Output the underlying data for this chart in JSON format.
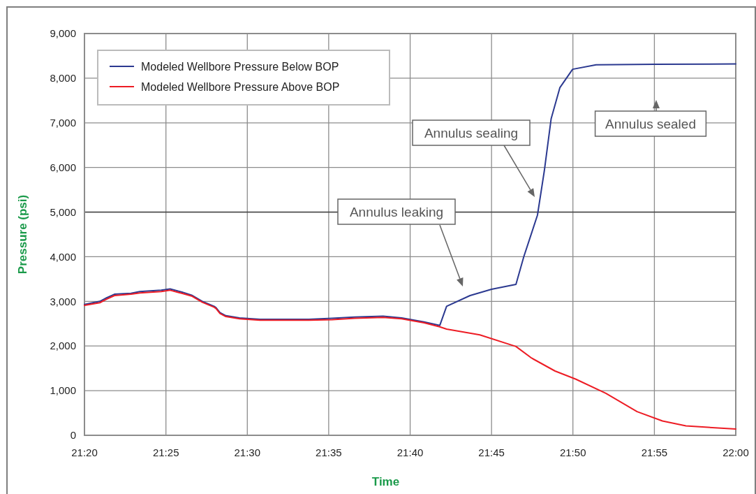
{
  "chart_data": {
    "type": "line",
    "xlabel": "Time",
    "ylabel": "Pressure (psi)",
    "xlim": [
      21.3333,
      22
    ],
    "ylim": [
      0,
      9000
    ],
    "xticks": [
      {
        "value": 21.3333,
        "label": "21:20"
      },
      {
        "value": 21.4167,
        "label": "21:25"
      },
      {
        "value": 21.5,
        "label": "21:30"
      },
      {
        "value": 21.5833,
        "label": "21:35"
      },
      {
        "value": 21.6667,
        "label": "21:40"
      },
      {
        "value": 21.75,
        "label": "21:45"
      },
      {
        "value": 21.8333,
        "label": "21:50"
      },
      {
        "value": 21.9167,
        "label": "21:55"
      },
      {
        "value": 22,
        "label": "22:00"
      }
    ],
    "yticks": [
      {
        "value": 0,
        "label": "0"
      },
      {
        "value": 1000,
        "label": "1,000"
      },
      {
        "value": 2000,
        "label": "2,000"
      },
      {
        "value": 3000,
        "label": "3,000"
      },
      {
        "value": 4000,
        "label": "4,000"
      },
      {
        "value": 5000,
        "label": "5,000"
      },
      {
        "value": 6000,
        "label": "6,000"
      },
      {
        "value": 7000,
        "label": "7,000"
      },
      {
        "value": 8000,
        "label": "8,000"
      },
      {
        "value": 9000,
        "label": "9,000"
      }
    ],
    "grid": true,
    "legend": "top left",
    "line_style": "solid",
    "marker": "none",
    "ref_lines": [
      {
        "axis": "y",
        "value": 5000,
        "color": "#404040"
      }
    ],
    "series": [
      {
        "name": "Modeled Wellbore Pressure Below BOP",
        "color": "#2b3990",
        "x": [
          21.3333,
          21.349,
          21.356,
          21.364,
          21.381,
          21.39,
          21.412,
          21.421,
          21.433,
          21.443,
          21.454,
          21.466,
          21.468,
          21.472,
          21.478,
          21.492,
          21.513,
          21.563,
          21.587,
          21.61,
          21.639,
          21.658,
          21.681,
          21.697,
          21.704,
          21.728,
          21.75,
          21.775,
          21.783,
          21.797,
          21.804,
          21.811,
          21.82,
          21.833,
          21.857,
          21.917,
          22
        ],
        "values": [
          2930,
          3000,
          3080,
          3160,
          3180,
          3220,
          3250,
          3280,
          3210,
          3140,
          3000,
          2890,
          2860,
          2750,
          2680,
          2630,
          2600,
          2600,
          2620,
          2650,
          2670,
          2630,
          2540,
          2460,
          2890,
          3130,
          3270,
          3380,
          4000,
          4930,
          5920,
          7090,
          7790,
          8200,
          8300,
          8310,
          8320
        ]
      },
      {
        "name": "Modeled Wellbore Pressure Above BOP",
        "color": "#ed1c24",
        "x": [
          21.3333,
          21.349,
          21.356,
          21.364,
          21.381,
          21.39,
          21.412,
          21.421,
          21.433,
          21.443,
          21.454,
          21.466,
          21.468,
          21.472,
          21.478,
          21.492,
          21.513,
          21.563,
          21.587,
          21.61,
          21.639,
          21.658,
          21.681,
          21.697,
          21.704,
          21.738,
          21.775,
          21.791,
          21.815,
          21.836,
          21.867,
          21.899,
          21.925,
          21.949,
          22
        ],
        "values": [
          2910,
          2970,
          3050,
          3130,
          3160,
          3190,
          3220,
          3250,
          3180,
          3120,
          2980,
          2870,
          2840,
          2730,
          2660,
          2610,
          2580,
          2580,
          2590,
          2620,
          2640,
          2610,
          2520,
          2430,
          2380,
          2250,
          1990,
          1730,
          1440,
          1260,
          940,
          530,
          320,
          210,
          140
        ]
      }
    ],
    "annotations": [
      "Annulus leaking",
      "Annulus sealing",
      "Annulus sealed"
    ]
  }
}
